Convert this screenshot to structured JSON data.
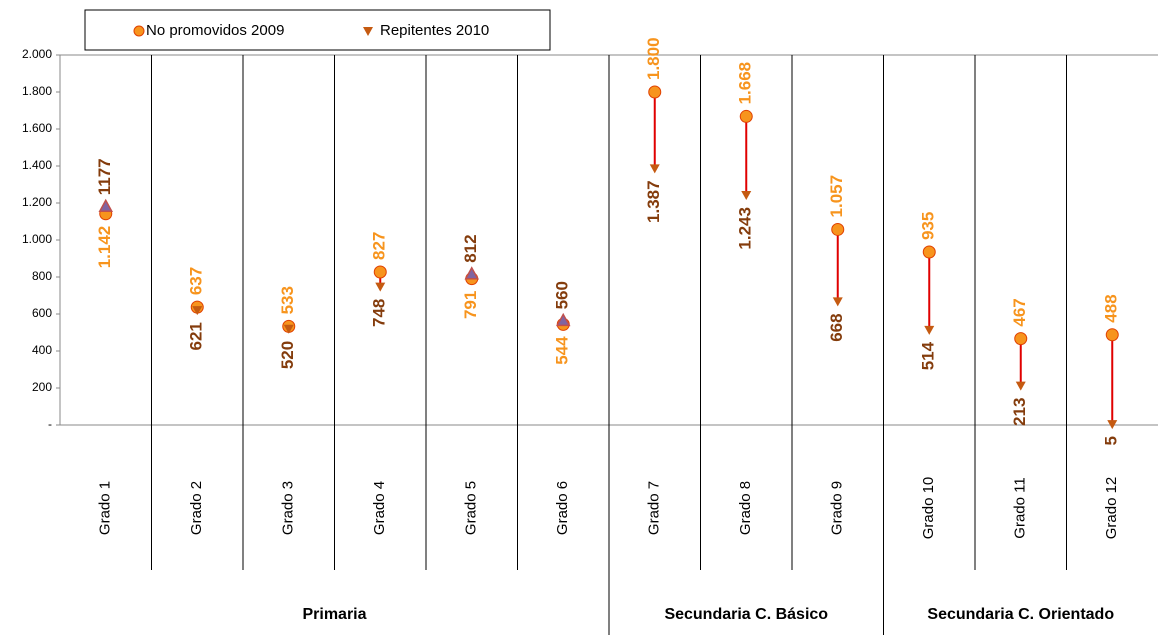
{
  "chart_data": {
    "type": "dumbbell",
    "categories": [
      "Grado 1",
      "Grado 2",
      "Grado 3",
      "Grado 4",
      "Grado 5",
      "Grado 6",
      "Grado 7",
      "Grado 8",
      "Grado 9",
      "Grado 10",
      "Grado 11",
      "Grado 12"
    ],
    "groups": [
      {
        "name": "Primaria",
        "span": 6
      },
      {
        "name": "Secundaria C. Básico",
        "span": 3
      },
      {
        "name": "Secundaria C. Orientado",
        "span": 3
      }
    ],
    "series": [
      {
        "name": "No promovidos 2009",
        "color": "#f7941d",
        "label_color": "#f7941d",
        "values": [
          1142,
          637,
          533,
          827,
          791,
          544,
          1800,
          1668,
          1057,
          935,
          467,
          488
        ],
        "value_labels": [
          "1.142",
          "637",
          "533",
          "827",
          "791",
          "544",
          "1.800",
          "1.668",
          "1.057",
          "935",
          "467",
          "488"
        ]
      },
      {
        "name": "Repitentes 2010",
        "color": "#c55a11",
        "label_color": "#843c0c",
        "values": [
          1177,
          621,
          520,
          748,
          812,
          560,
          1387,
          1243,
          668,
          514,
          213,
          5
        ],
        "value_labels": [
          "1177",
          "621",
          "520",
          "748",
          "812",
          "560",
          "1.387",
          "1.243",
          "668",
          "514",
          "213",
          "5"
        ]
      }
    ],
    "ylim": [
      0,
      2000
    ],
    "yticks": [
      {
        "value": 0,
        "label": "-"
      },
      200,
      400,
      600,
      800,
      {
        "value": 1000,
        "label": "1.000"
      },
      {
        "value": 1200,
        "label": "1.200"
      },
      {
        "value": 1400,
        "label": "1.400"
      },
      {
        "value": 1600,
        "label": "1.600"
      },
      {
        "value": 1800,
        "label": "1.800"
      },
      {
        "value": 2000,
        "label": "2.000"
      }
    ]
  }
}
